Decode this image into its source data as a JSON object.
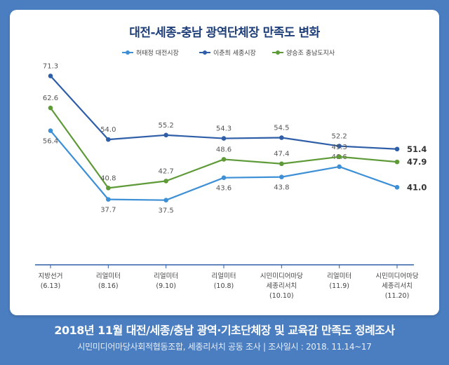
{
  "title": "대전-세종-충남 광역단체장 만족도 변화",
  "footer": {
    "title": "2018년 11월 대전/세종/충남 광역·기초단체장 및 교육감 만족도 정례조사",
    "subtitle": "시민미디어마당사회적협동조합, 세종리서치 공동 조사 | 조사일시 : 2018. 11.14~17"
  },
  "chart_data": {
    "type": "line",
    "title": "대전-세종-충남 광역단체장 만족도 변화",
    "xlabel": "",
    "ylabel": "",
    "ylim": [
      30,
      75
    ],
    "grid": false,
    "legend_position": "top",
    "categories": [
      [
        "지방선거",
        "(6.13)"
      ],
      [
        "리얼미터",
        "(8.16)"
      ],
      [
        "리얼미터",
        "(9.10)"
      ],
      [
        "리얼미터",
        "(10.8)"
      ],
      [
        "시민미디어마당",
        "세종리서치",
        "(10.10)"
      ],
      [
        "리얼미터",
        "(11.9)"
      ],
      [
        "시민미디어마당",
        "세종리서치",
        "(11.20)"
      ]
    ],
    "series": [
      {
        "name": "허태정 대전시장",
        "color": "#3d8fd6",
        "values": [
          56.4,
          37.7,
          37.5,
          43.6,
          43.8,
          46.6,
          41.0
        ],
        "labels": [
          "56.4",
          "37.7",
          "37.5",
          "43.6",
          "43.8",
          "46.6",
          "41.0"
        ],
        "label_side": [
          "below",
          "below",
          "below",
          "below",
          "below",
          "above",
          "right"
        ]
      },
      {
        "name": "이춘희 세종시장",
        "color": "#2f5ea8",
        "values": [
          71.3,
          54.0,
          55.2,
          54.3,
          54.5,
          52.2,
          51.4
        ],
        "labels": [
          "71.3",
          "54.0",
          "55.2",
          "54.3",
          "54.5",
          "52.2",
          "51.4"
        ],
        "label_side": [
          "above",
          "above",
          "above",
          "above",
          "above",
          "above",
          "right"
        ]
      },
      {
        "name": "양승조 충남도지사",
        "color": "#5e9a38",
        "values": [
          62.6,
          40.8,
          42.7,
          48.6,
          47.4,
          49.3,
          47.9
        ],
        "labels": [
          "62.6",
          "40.8",
          "42.7",
          "48.6",
          "47.4",
          "49.3",
          "47.9"
        ],
        "label_side": [
          "above",
          "above",
          "above",
          "above",
          "above",
          "above",
          "right"
        ]
      }
    ]
  }
}
